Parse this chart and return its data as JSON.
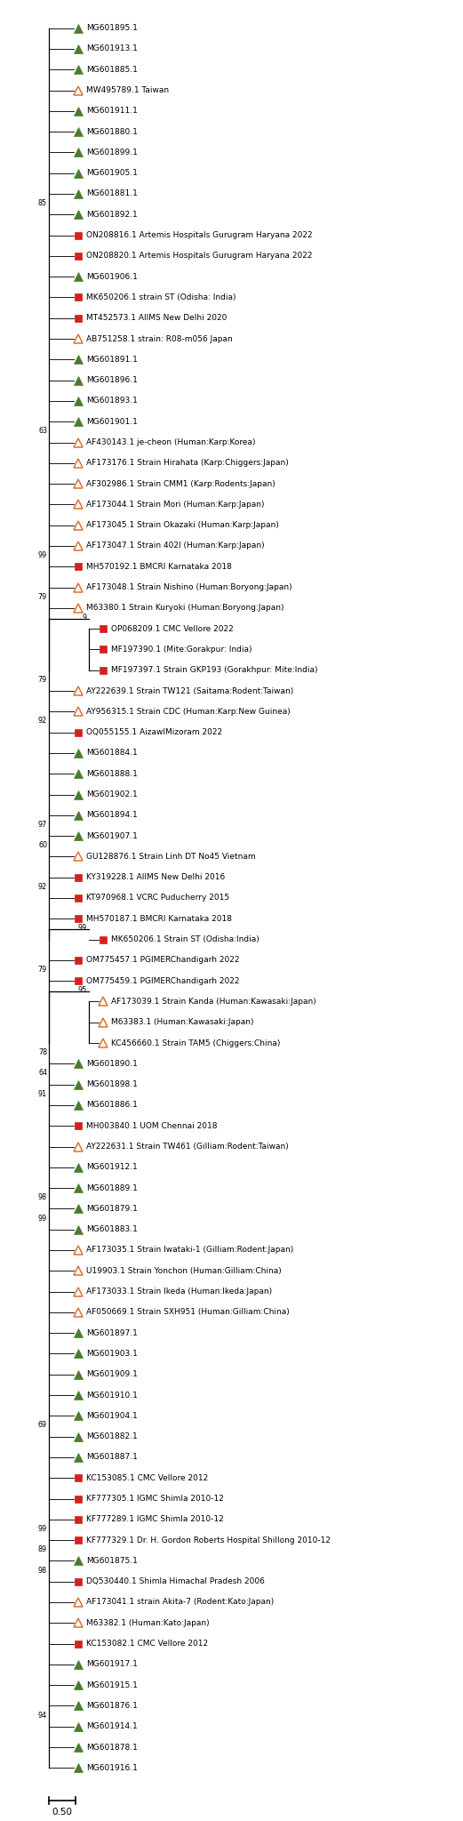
{
  "scale_label": "0.50",
  "entries": [
    {
      "label": "MG601895.1",
      "marker": "tri_fill",
      "color": "#4a7c2f",
      "level": 0
    },
    {
      "label": "MG601913.1",
      "marker": "tri_fill",
      "color": "#4a7c2f",
      "level": 0
    },
    {
      "label": "MG601885.1",
      "marker": "tri_fill",
      "color": "#4a7c2f",
      "level": 0
    },
    {
      "label": "MW495789.1 Taiwan",
      "marker": "tri_open",
      "color": "#e07030",
      "level": 0
    },
    {
      "label": "MG601911.1",
      "marker": "tri_fill",
      "color": "#4a7c2f",
      "level": 0
    },
    {
      "label": "MG601880.1",
      "marker": "tri_fill",
      "color": "#4a7c2f",
      "level": 0
    },
    {
      "label": "MG601899.1",
      "marker": "tri_fill",
      "color": "#4a7c2f",
      "level": 0
    },
    {
      "label": "MG601905.1",
      "marker": "tri_fill",
      "color": "#4a7c2f",
      "level": 0
    },
    {
      "label": "MG601881.1",
      "marker": "tri_fill",
      "color": "#4a7c2f",
      "level": 0
    },
    {
      "label": "MG601892.1",
      "marker": "tri_fill",
      "color": "#4a7c2f",
      "level": 0
    },
    {
      "label": "ON208816.1 Artemis Hospitals Gurugram Haryana 2022",
      "marker": "sq_fill",
      "color": "#d42020",
      "level": 0
    },
    {
      "label": "ON208820.1 Artemis Hospitals Gurugram Haryana 2022",
      "marker": "sq_fill",
      "color": "#d42020",
      "level": 0
    },
    {
      "label": "MG601906.1",
      "marker": "tri_fill",
      "color": "#4a7c2f",
      "level": 0
    },
    {
      "label": "MK650206.1 strain ST (Odisha: India)",
      "marker": "sq_fill",
      "color": "#d42020",
      "level": 0
    },
    {
      "label": "MT452573.1 AIIMS New Delhi 2020",
      "marker": "sq_fill",
      "color": "#d42020",
      "level": 0
    },
    {
      "label": "AB751258.1 strain: R08-m056 Japan",
      "marker": "tri_open",
      "color": "#e07030",
      "level": 0
    },
    {
      "label": "MG601891.1",
      "marker": "tri_fill",
      "color": "#4a7c2f",
      "level": 0
    },
    {
      "label": "MG601896.1",
      "marker": "tri_fill",
      "color": "#4a7c2f",
      "level": 0
    },
    {
      "label": "MG601893.1",
      "marker": "tri_fill",
      "color": "#4a7c2f",
      "level": 0
    },
    {
      "label": "MG601901.1",
      "marker": "tri_fill",
      "color": "#4a7c2f",
      "level": 0
    },
    {
      "label": "AF430143.1 je-cheon (Human:Karp:Korea)",
      "marker": "tri_open",
      "color": "#e07030",
      "level": 0
    },
    {
      "label": "AF173176.1 Strain Hirahata (Karp:Chiggers:Japan)",
      "marker": "tri_open",
      "color": "#e07030",
      "level": 0
    },
    {
      "label": "AF302986.1 Strain CMM1 (Karp:Rodents:Japan)",
      "marker": "tri_open",
      "color": "#e07030",
      "level": 0
    },
    {
      "label": "AF173044.1 Strain Mori (Human:Karp:Japan)",
      "marker": "tri_open",
      "color": "#e07030",
      "level": 0
    },
    {
      "label": "AF173045.1 Strain Okazaki (Human:Karp:Japan)",
      "marker": "tri_open",
      "color": "#e07030",
      "level": 0
    },
    {
      "label": "AF173047.1 Strain 402I (Human:Karp:Japan)",
      "marker": "tri_open",
      "color": "#e07030",
      "level": 0
    },
    {
      "label": "MH570192.1 BMCRI Karnataka 2018",
      "marker": "sq_fill",
      "color": "#d42020",
      "level": 0
    },
    {
      "label": "AF173048.1 Strain Nishino (Human:Boryong:Japan)",
      "marker": "tri_open",
      "color": "#e07030",
      "level": 0
    },
    {
      "label": "M63380.1 Strain Kuryoki (Human:Boryong:Japan)",
      "marker": "tri_open",
      "color": "#e07030",
      "level": 0
    },
    {
      "label": "OP068209.1 CMC Vellore 2022",
      "marker": "sq_fill",
      "color": "#d42020",
      "level": 1
    },
    {
      "label": "MF197390.1 (Mite:Gorakpur: India)",
      "marker": "sq_fill",
      "color": "#d42020",
      "level": 1
    },
    {
      "label": "MF197397.1 Strain GKP193 (Gorakhpur: Mite:India)",
      "marker": "sq_fill",
      "color": "#d42020",
      "level": 1
    },
    {
      "label": "AY222639.1 Strain TW121 (Saitama:Rodent:Taiwan)",
      "marker": "tri_open",
      "color": "#e07030",
      "level": 0
    },
    {
      "label": "AY956315.1 Strain CDC (Human:Karp:New Guinea)",
      "marker": "tri_open",
      "color": "#e07030",
      "level": 0
    },
    {
      "label": "OQ055155.1 AizawlMizoram 2022",
      "marker": "sq_fill",
      "color": "#d42020",
      "level": 0
    },
    {
      "label": "MG601884.1",
      "marker": "tri_fill",
      "color": "#4a7c2f",
      "level": 0
    },
    {
      "label": "MG601888.1",
      "marker": "tri_fill",
      "color": "#4a7c2f",
      "level": 0
    },
    {
      "label": "MG601902.1",
      "marker": "tri_fill",
      "color": "#4a7c2f",
      "level": 0
    },
    {
      "label": "MG601894.1",
      "marker": "tri_fill",
      "color": "#4a7c2f",
      "level": 0
    },
    {
      "label": "MG601907.1",
      "marker": "tri_fill",
      "color": "#4a7c2f",
      "level": 0
    },
    {
      "label": "GU128876.1 Strain Linh DT No45 Vietnam",
      "marker": "tri_open",
      "color": "#e07030",
      "level": 0
    },
    {
      "label": "KY319228.1 AIIMS New Delhi 2016",
      "marker": "sq_fill",
      "color": "#d42020",
      "level": 0
    },
    {
      "label": "KT970968.1 VCRC Puducherry 2015",
      "marker": "sq_fill",
      "color": "#d42020",
      "level": 0
    },
    {
      "label": "MH570187.1 BMCRI Karnataka 2018",
      "marker": "sq_fill",
      "color": "#d42020",
      "level": 0
    },
    {
      "label": "MK650206.1 Strain ST (Odisha:India)",
      "marker": "sq_fill",
      "color": "#d42020",
      "level": 1
    },
    {
      "label": "OM775457.1 PGIMERChandigarh 2022",
      "marker": "sq_fill",
      "color": "#d42020",
      "level": 0
    },
    {
      "label": "OM775459.1 PGIMERChandigarh 2022",
      "marker": "sq_fill",
      "color": "#d42020",
      "level": 0
    },
    {
      "label": "AF173039.1 Strain Kanda (Human:Kawasaki:Japan)",
      "marker": "tri_open",
      "color": "#e07030",
      "level": 1
    },
    {
      "label": "M63383.1 (Human:Kawasaki:Japan)",
      "marker": "tri_open",
      "color": "#e07030",
      "level": 1
    },
    {
      "label": "KC456660.1 Strain TAM5 (Chiggers:China)",
      "marker": "tri_open",
      "color": "#e07030",
      "level": 1
    },
    {
      "label": "MG601890.1",
      "marker": "tri_fill",
      "color": "#4a7c2f",
      "level": 0
    },
    {
      "label": "MG601898.1",
      "marker": "tri_fill",
      "color": "#4a7c2f",
      "level": 0
    },
    {
      "label": "MG601886.1",
      "marker": "tri_fill",
      "color": "#4a7c2f",
      "level": 0
    },
    {
      "label": "MH003840.1 UOM Chennai 2018",
      "marker": "sq_fill",
      "color": "#d42020",
      "level": 0
    },
    {
      "label": "AY222631.1 Strain TW461 (Gilliam:Rodent:Taiwan)",
      "marker": "tri_open",
      "color": "#e07030",
      "level": 0
    },
    {
      "label": "MG601912.1",
      "marker": "tri_fill",
      "color": "#4a7c2f",
      "level": 0
    },
    {
      "label": "MG601889.1",
      "marker": "tri_fill",
      "color": "#4a7c2f",
      "level": 0
    },
    {
      "label": "MG601879.1",
      "marker": "tri_fill",
      "color": "#4a7c2f",
      "level": 0
    },
    {
      "label": "MG601883.1",
      "marker": "tri_fill",
      "color": "#4a7c2f",
      "level": 0
    },
    {
      "label": "AF173035.1 Strain Iwataki-1 (Gilliam:Rodent:Japan)",
      "marker": "tri_open",
      "color": "#e07030",
      "level": 0
    },
    {
      "label": "U19903.1 Strain Yonchon (Human:Gilliam:China)",
      "marker": "tri_open",
      "color": "#e07030",
      "level": 0
    },
    {
      "label": "AF173033.1 Strain Ikeda (Human:Ikeda:Japan)",
      "marker": "tri_open",
      "color": "#e07030",
      "level": 0
    },
    {
      "label": "AF050669.1 Strain SXH951 (Human:Gilliam:China)",
      "marker": "tri_open",
      "color": "#e07030",
      "level": 0
    },
    {
      "label": "MG601897.1",
      "marker": "tri_fill",
      "color": "#4a7c2f",
      "level": 0
    },
    {
      "label": "MG601903.1",
      "marker": "tri_fill",
      "color": "#4a7c2f",
      "level": 0
    },
    {
      "label": "MG601909.1",
      "marker": "tri_fill",
      "color": "#4a7c2f",
      "level": 0
    },
    {
      "label": "MG601910.1",
      "marker": "tri_fill",
      "color": "#4a7c2f",
      "level": 0
    },
    {
      "label": "MG601904.1",
      "marker": "tri_fill",
      "color": "#4a7c2f",
      "level": 0
    },
    {
      "label": "MG601882.1",
      "marker": "tri_fill",
      "color": "#4a7c2f",
      "level": 0
    },
    {
      "label": "MG601887.1",
      "marker": "tri_fill",
      "color": "#4a7c2f",
      "level": 0
    },
    {
      "label": "KC153085.1 CMC Vellore 2012",
      "marker": "sq_fill",
      "color": "#d42020",
      "level": 0
    },
    {
      "label": "KF777305.1 IGMC Shimla 2010-12",
      "marker": "sq_fill",
      "color": "#d42020",
      "level": 0
    },
    {
      "label": "KF777289.1 IGMC Shimla 2010-12",
      "marker": "sq_fill",
      "color": "#d42020",
      "level": 0
    },
    {
      "label": "KF777329.1 Dr. H. Gordon Roberts Hospital Shillong 2010-12",
      "marker": "sq_fill",
      "color": "#d42020",
      "level": 0
    },
    {
      "label": "MG601875.1",
      "marker": "tri_fill",
      "color": "#4a7c2f",
      "level": 0
    },
    {
      "label": "DQ530440.1 Shimla Himachal Pradesh 2006",
      "marker": "sq_fill",
      "color": "#d42020",
      "level": 0
    },
    {
      "label": "AF173041.1 strain Akita-7 (Rodent:Kato:Japan)",
      "marker": "tri_open",
      "color": "#e07030",
      "level": 0
    },
    {
      "label": "M63382.1 (Human:Kato:Japan)",
      "marker": "tri_open",
      "color": "#e07030",
      "level": 0
    },
    {
      "label": "KC153082.1 CMC Vellore 2012",
      "marker": "sq_fill",
      "color": "#d42020",
      "level": 0
    },
    {
      "label": "MG601917.1",
      "marker": "tri_fill",
      "color": "#4a7c2f",
      "level": 0
    },
    {
      "label": "MG601915.1",
      "marker": "tri_fill",
      "color": "#4a7c2f",
      "level": 0
    },
    {
      "label": "MG601876.1",
      "marker": "tri_fill",
      "color": "#4a7c2f",
      "level": 0
    },
    {
      "label": "MG601914.1",
      "marker": "tri_fill",
      "color": "#4a7c2f",
      "level": 0
    },
    {
      "label": "MG601878.1",
      "marker": "tri_fill",
      "color": "#4a7c2f",
      "level": 0
    },
    {
      "label": "MG601916.1",
      "marker": "tri_fill",
      "color": "#4a7c2f",
      "level": 0
    }
  ],
  "bootstrap_nodes": [
    {
      "row": 9,
      "text": "85",
      "col": 0
    },
    {
      "row": 20,
      "text": "63",
      "col": 0
    },
    {
      "row": 26,
      "text": "99",
      "col": 0
    },
    {
      "row": 28,
      "text": "79",
      "col": 0
    },
    {
      "row": 29,
      "text": "9",
      "col": 1
    },
    {
      "row": 32,
      "text": "79",
      "col": 0
    },
    {
      "row": 34,
      "text": "92",
      "col": 0
    },
    {
      "row": 39,
      "text": "97",
      "col": 0
    },
    {
      "row": 40,
      "text": "60",
      "col": 0
    },
    {
      "row": 42,
      "text": "92",
      "col": 0
    },
    {
      "row": 44,
      "text": "99",
      "col": 1
    },
    {
      "row": 46,
      "text": "79",
      "col": 0
    },
    {
      "row": 47,
      "text": "95",
      "col": 1
    },
    {
      "row": 50,
      "text": "78",
      "col": 0
    },
    {
      "row": 51,
      "text": "64",
      "col": 0
    },
    {
      "row": 52,
      "text": "91",
      "col": 0
    },
    {
      "row": 57,
      "text": "98",
      "col": 0
    },
    {
      "row": 58,
      "text": "99",
      "col": 0
    },
    {
      "row": 68,
      "text": "69",
      "col": 0
    },
    {
      "row": 73,
      "text": "99",
      "col": 0
    },
    {
      "row": 74,
      "text": "89",
      "col": 0
    },
    {
      "row": 75,
      "text": "98",
      "col": 0
    },
    {
      "row": 82,
      "text": "94",
      "col": 0
    }
  ],
  "bracket_groups": [
    {
      "rows": [
        29,
        30,
        31
      ],
      "col": 1
    },
    {
      "rows": [
        44
      ],
      "col": 1
    },
    {
      "rows": [
        47,
        48,
        49
      ],
      "col": 1
    },
    {
      "rows": [
        58,
        59,
        60,
        61
      ],
      "col": 1
    }
  ]
}
